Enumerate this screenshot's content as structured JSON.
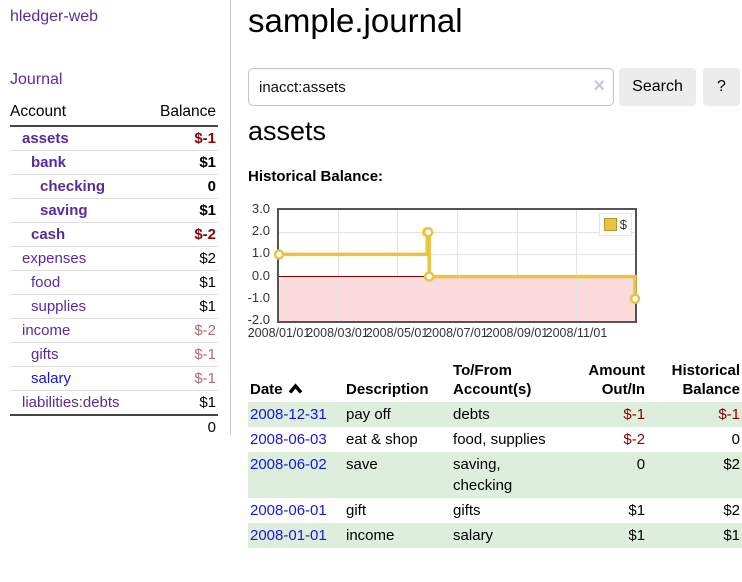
{
  "colors": {
    "purple": "#5a2a9d",
    "blue": "#1515e0",
    "negative_strong": "#8b0000",
    "negative_muted": "#b36a6a",
    "row_green": "#ddeedd",
    "chart_gold": "#EDC240",
    "negative_fill_pink": "#fbdbdb",
    "zero_line": "#8b0000"
  },
  "app": {
    "brand": "hledger-web",
    "nav": {
      "journal": "Journal"
    }
  },
  "sidebar": {
    "columns": {
      "account": "Account",
      "balance": "Balance"
    },
    "accounts": [
      {
        "name": "assets",
        "level": 1,
        "bold": true,
        "balance": "$-1",
        "balance_style": "neg-strong"
      },
      {
        "name": "bank",
        "level": 2,
        "bold": true,
        "balance": "$1",
        "balance_style": "pos"
      },
      {
        "name": "checking",
        "level": 3,
        "bold": true,
        "balance": "0",
        "balance_style": "pos"
      },
      {
        "name": "saving",
        "level": 3,
        "bold": true,
        "balance": "$1",
        "balance_style": "pos"
      },
      {
        "name": "cash",
        "level": 2,
        "bold": true,
        "balance": "$-2",
        "balance_style": "neg-strong"
      },
      {
        "name": "expenses",
        "level": 1,
        "bold": false,
        "balance": "$2",
        "balance_style": "pos"
      },
      {
        "name": "food",
        "level": 2,
        "bold": false,
        "balance": "$1",
        "balance_style": "pos"
      },
      {
        "name": "supplies",
        "level": 2,
        "bold": false,
        "balance": "$1",
        "balance_style": "pos"
      },
      {
        "name": "income",
        "level": 1,
        "bold": false,
        "balance": "$-2",
        "balance_style": "neg-muted"
      },
      {
        "name": "gifts",
        "level": 2,
        "bold": false,
        "balance": "$-1",
        "balance_style": "neg-muted"
      },
      {
        "name": "salary",
        "level": 2,
        "bold": false,
        "balance": "$-1",
        "balance_style": "neg-muted",
        "link_color": "blue"
      },
      {
        "name": "liabilities:debts",
        "level": 1,
        "bold": false,
        "balance": "$1",
        "balance_style": "pos"
      }
    ],
    "total": "0"
  },
  "main": {
    "title": "sample.journal",
    "search": {
      "value": "inacct:assets",
      "clear_icon": "×",
      "button_label": "Search",
      "help_label": "?"
    },
    "account_heading": "assets",
    "section_label": "Historical Balance:"
  },
  "chart_data": {
    "type": "line",
    "step": true,
    "title": "Historical Balance",
    "legend_position": "top-right",
    "grid": true,
    "x_range": [
      "2008-01-01",
      "2008-12-31"
    ],
    "ylim": [
      -2,
      3
    ],
    "y_tick_values": [
      3,
      2,
      1,
      0,
      -1,
      -2
    ],
    "y_tick_labels": [
      "3.0",
      "2.0",
      "1.0",
      "0.0",
      "-1.0",
      "-2.0"
    ],
    "x_tick_labels": [
      "2008/01/01",
      "2008/03/01",
      "2008/05/01",
      "2008/07/01",
      "2008/09/01",
      "2008/11/01"
    ],
    "series": [
      {
        "name": "$",
        "points": [
          [
            "2008-01-01",
            1
          ],
          [
            "2008-06-01",
            2
          ],
          [
            "2008-06-02",
            2
          ],
          [
            "2008-06-03",
            0
          ],
          [
            "2008-12-31",
            -1
          ]
        ]
      }
    ]
  },
  "table": {
    "headers": [
      {
        "lines": [
          "Date"
        ],
        "sort": "asc",
        "align": "left"
      },
      {
        "lines": [
          "Description"
        ],
        "align": "left"
      },
      {
        "lines": [
          "To/From",
          "Account(s)"
        ],
        "align": "left"
      },
      {
        "lines": [
          "Amount",
          "Out/In"
        ],
        "align": "right"
      },
      {
        "lines": [
          "Historical",
          "Balance"
        ],
        "align": "right"
      }
    ],
    "rows": [
      {
        "date": "2008-12-31",
        "description": "pay off",
        "accounts": "debts",
        "amount": "$-1",
        "amount_neg": true,
        "balance": "$-1",
        "balance_neg": true
      },
      {
        "date": "2008-06-03",
        "description": "eat & shop",
        "accounts": "food, supplies",
        "amount": "$-2",
        "amount_neg": true,
        "balance": "0",
        "balance_neg": false
      },
      {
        "date": "2008-06-02",
        "description": "save",
        "accounts": "saving, checking",
        "amount": "0",
        "amount_neg": false,
        "balance": "$2",
        "balance_neg": false
      },
      {
        "date": "2008-06-01",
        "description": "gift",
        "accounts": "gifts",
        "amount": "$1",
        "amount_neg": false,
        "balance": "$2",
        "balance_neg": false
      },
      {
        "date": "2008-01-01",
        "description": "income",
        "accounts": "salary",
        "amount": "$1",
        "amount_neg": false,
        "balance": "$1",
        "balance_neg": false
      }
    ]
  }
}
